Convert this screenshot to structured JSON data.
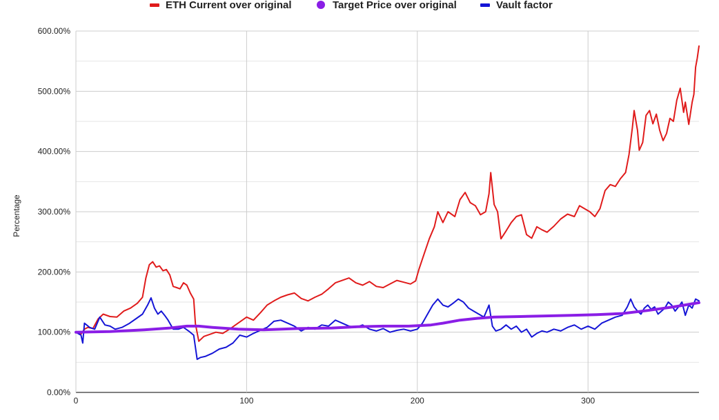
{
  "chart_data": {
    "type": "line",
    "title": "",
    "xlabel": "",
    "ylabel": "Percentage",
    "xlim": [
      0,
      365
    ],
    "ylim": [
      0,
      6
    ],
    "x_ticks": [
      "0",
      "100",
      "200",
      "300"
    ],
    "y_ticks": [
      "0.00%",
      "100.00%",
      "200.00%",
      "300.00%",
      "400.00%",
      "500.00%",
      "600.00%"
    ],
    "grid": true,
    "legend_position": "top",
    "series": [
      {
        "name": "ETH Current over original",
        "color": "#e01b1b",
        "legend_marker": "line",
        "points": [
          [
            0,
            1.0
          ],
          [
            3,
            0.97
          ],
          [
            5,
            1.05
          ],
          [
            7,
            1.08
          ],
          [
            10,
            1.06
          ],
          [
            13,
            1.22
          ],
          [
            16,
            1.3
          ],
          [
            20,
            1.26
          ],
          [
            24,
            1.25
          ],
          [
            28,
            1.35
          ],
          [
            32,
            1.4
          ],
          [
            36,
            1.48
          ],
          [
            39,
            1.58
          ],
          [
            41,
            1.9
          ],
          [
            43,
            2.12
          ],
          [
            45,
            2.17
          ],
          [
            47,
            2.08
          ],
          [
            49,
            2.1
          ],
          [
            51,
            2.02
          ],
          [
            53,
            2.04
          ],
          [
            55,
            1.95
          ],
          [
            57,
            1.76
          ],
          [
            59,
            1.74
          ],
          [
            61,
            1.72
          ],
          [
            63,
            1.82
          ],
          [
            65,
            1.78
          ],
          [
            67,
            1.65
          ],
          [
            69,
            1.55
          ],
          [
            70,
            1.14
          ],
          [
            72,
            0.85
          ],
          [
            75,
            0.93
          ],
          [
            78,
            0.96
          ],
          [
            82,
            1.0
          ],
          [
            86,
            0.98
          ],
          [
            90,
            1.05
          ],
          [
            95,
            1.15
          ],
          [
            100,
            1.25
          ],
          [
            104,
            1.2
          ],
          [
            108,
            1.32
          ],
          [
            112,
            1.45
          ],
          [
            116,
            1.52
          ],
          [
            120,
            1.58
          ],
          [
            124,
            1.62
          ],
          [
            128,
            1.65
          ],
          [
            132,
            1.56
          ],
          [
            136,
            1.52
          ],
          [
            140,
            1.58
          ],
          [
            144,
            1.63
          ],
          [
            148,
            1.72
          ],
          [
            152,
            1.82
          ],
          [
            156,
            1.86
          ],
          [
            160,
            1.9
          ],
          [
            164,
            1.82
          ],
          [
            168,
            1.78
          ],
          [
            172,
            1.84
          ],
          [
            176,
            1.76
          ],
          [
            180,
            1.74
          ],
          [
            184,
            1.8
          ],
          [
            188,
            1.86
          ],
          [
            192,
            1.83
          ],
          [
            196,
            1.8
          ],
          [
            199,
            1.85
          ],
          [
            201,
            2.05
          ],
          [
            204,
            2.3
          ],
          [
            207,
            2.55
          ],
          [
            210,
            2.75
          ],
          [
            212,
            3.0
          ],
          [
            215,
            2.82
          ],
          [
            218,
            3.0
          ],
          [
            222,
            2.92
          ],
          [
            225,
            3.2
          ],
          [
            228,
            3.32
          ],
          [
            231,
            3.15
          ],
          [
            234,
            3.1
          ],
          [
            237,
            2.95
          ],
          [
            240,
            3.0
          ],
          [
            242,
            3.3
          ],
          [
            243,
            3.65
          ],
          [
            245,
            3.12
          ],
          [
            247,
            3.0
          ],
          [
            249,
            2.55
          ],
          [
            252,
            2.68
          ],
          [
            255,
            2.82
          ],
          [
            258,
            2.92
          ],
          [
            261,
            2.95
          ],
          [
            264,
            2.62
          ],
          [
            267,
            2.56
          ],
          [
            270,
            2.75
          ],
          [
            273,
            2.7
          ],
          [
            276,
            2.66
          ],
          [
            280,
            2.76
          ],
          [
            284,
            2.88
          ],
          [
            288,
            2.96
          ],
          [
            292,
            2.92
          ],
          [
            295,
            3.1
          ],
          [
            298,
            3.05
          ],
          [
            301,
            3.0
          ],
          [
            304,
            2.92
          ],
          [
            307,
            3.05
          ],
          [
            310,
            3.35
          ],
          [
            313,
            3.45
          ],
          [
            316,
            3.42
          ],
          [
            319,
            3.55
          ],
          [
            322,
            3.65
          ],
          [
            324,
            3.95
          ],
          [
            326,
            4.4
          ],
          [
            327,
            4.68
          ],
          [
            329,
            4.35
          ],
          [
            330,
            4.02
          ],
          [
            332,
            4.15
          ],
          [
            334,
            4.6
          ],
          [
            336,
            4.68
          ],
          [
            338,
            4.46
          ],
          [
            340,
            4.62
          ],
          [
            342,
            4.35
          ],
          [
            344,
            4.18
          ],
          [
            346,
            4.3
          ],
          [
            348,
            4.55
          ],
          [
            350,
            4.5
          ],
          [
            352,
            4.85
          ],
          [
            354,
            5.05
          ],
          [
            356,
            4.65
          ],
          [
            357,
            4.82
          ],
          [
            359,
            4.45
          ],
          [
            361,
            4.82
          ],
          [
            362,
            4.95
          ],
          [
            363,
            5.4
          ],
          [
            364,
            5.55
          ],
          [
            365,
            5.75
          ]
        ]
      },
      {
        "name": "Target Price over original",
        "color": "#8a1ee6",
        "legend_marker": "dot",
        "points": [
          [
            0,
            1.0
          ],
          [
            20,
            1.01
          ],
          [
            40,
            1.04
          ],
          [
            55,
            1.07
          ],
          [
            65,
            1.1
          ],
          [
            72,
            1.1
          ],
          [
            80,
            1.08
          ],
          [
            95,
            1.05
          ],
          [
            110,
            1.04
          ],
          [
            130,
            1.06
          ],
          [
            150,
            1.07
          ],
          [
            165,
            1.09
          ],
          [
            180,
            1.1
          ],
          [
            195,
            1.1
          ],
          [
            208,
            1.12
          ],
          [
            215,
            1.15
          ],
          [
            225,
            1.2
          ],
          [
            235,
            1.23
          ],
          [
            245,
            1.25
          ],
          [
            260,
            1.26
          ],
          [
            275,
            1.27
          ],
          [
            290,
            1.28
          ],
          [
            305,
            1.29
          ],
          [
            320,
            1.31
          ],
          [
            335,
            1.36
          ],
          [
            350,
            1.42
          ],
          [
            365,
            1.49
          ]
        ]
      },
      {
        "name": "Vault factor",
        "color": "#1515d6",
        "legend_marker": "line",
        "points": [
          [
            0,
            1.0
          ],
          [
            3,
            0.95
          ],
          [
            4,
            0.82
          ],
          [
            5,
            1.15
          ],
          [
            8,
            1.08
          ],
          [
            11,
            1.05
          ],
          [
            14,
            1.25
          ],
          [
            17,
            1.12
          ],
          [
            20,
            1.1
          ],
          [
            23,
            1.05
          ],
          [
            27,
            1.08
          ],
          [
            31,
            1.14
          ],
          [
            35,
            1.22
          ],
          [
            39,
            1.3
          ],
          [
            42,
            1.45
          ],
          [
            44,
            1.57
          ],
          [
            46,
            1.4
          ],
          [
            48,
            1.3
          ],
          [
            50,
            1.35
          ],
          [
            52,
            1.28
          ],
          [
            54,
            1.2
          ],
          [
            57,
            1.05
          ],
          [
            60,
            1.05
          ],
          [
            63,
            1.08
          ],
          [
            66,
            1.02
          ],
          [
            69,
            0.95
          ],
          [
            70,
            0.75
          ],
          [
            71,
            0.55
          ],
          [
            73,
            0.58
          ],
          [
            76,
            0.6
          ],
          [
            80,
            0.65
          ],
          [
            84,
            0.72
          ],
          [
            88,
            0.75
          ],
          [
            92,
            0.82
          ],
          [
            96,
            0.95
          ],
          [
            100,
            0.92
          ],
          [
            104,
            0.98
          ],
          [
            108,
            1.03
          ],
          [
            112,
            1.08
          ],
          [
            116,
            1.18
          ],
          [
            120,
            1.2
          ],
          [
            124,
            1.15
          ],
          [
            128,
            1.1
          ],
          [
            132,
            1.02
          ],
          [
            136,
            1.08
          ],
          [
            140,
            1.05
          ],
          [
            144,
            1.12
          ],
          [
            148,
            1.1
          ],
          [
            152,
            1.2
          ],
          [
            156,
            1.15
          ],
          [
            160,
            1.1
          ],
          [
            164,
            1.08
          ],
          [
            168,
            1.12
          ],
          [
            172,
            1.05
          ],
          [
            176,
            1.02
          ],
          [
            180,
            1.06
          ],
          [
            184,
            1.0
          ],
          [
            188,
            1.03
          ],
          [
            192,
            1.05
          ],
          [
            196,
            1.02
          ],
          [
            200,
            1.05
          ],
          [
            203,
            1.15
          ],
          [
            206,
            1.3
          ],
          [
            209,
            1.45
          ],
          [
            212,
            1.55
          ],
          [
            215,
            1.45
          ],
          [
            218,
            1.42
          ],
          [
            221,
            1.48
          ],
          [
            224,
            1.55
          ],
          [
            227,
            1.5
          ],
          [
            230,
            1.4
          ],
          [
            233,
            1.35
          ],
          [
            236,
            1.3
          ],
          [
            239,
            1.25
          ],
          [
            242,
            1.45
          ],
          [
            244,
            1.1
          ],
          [
            246,
            1.02
          ],
          [
            249,
            1.05
          ],
          [
            252,
            1.12
          ],
          [
            255,
            1.05
          ],
          [
            258,
            1.1
          ],
          [
            261,
            1.0
          ],
          [
            264,
            1.05
          ],
          [
            267,
            0.92
          ],
          [
            270,
            0.98
          ],
          [
            273,
            1.02
          ],
          [
            276,
            1.0
          ],
          [
            280,
            1.05
          ],
          [
            284,
            1.02
          ],
          [
            288,
            1.08
          ],
          [
            292,
            1.12
          ],
          [
            296,
            1.05
          ],
          [
            300,
            1.1
          ],
          [
            304,
            1.05
          ],
          [
            308,
            1.15
          ],
          [
            312,
            1.2
          ],
          [
            316,
            1.25
          ],
          [
            320,
            1.28
          ],
          [
            323,
            1.42
          ],
          [
            325,
            1.55
          ],
          [
            327,
            1.42
          ],
          [
            329,
            1.35
          ],
          [
            331,
            1.3
          ],
          [
            333,
            1.4
          ],
          [
            335,
            1.45
          ],
          [
            337,
            1.38
          ],
          [
            339,
            1.42
          ],
          [
            341,
            1.3
          ],
          [
            343,
            1.35
          ],
          [
            345,
            1.4
          ],
          [
            347,
            1.5
          ],
          [
            349,
            1.45
          ],
          [
            351,
            1.35
          ],
          [
            353,
            1.42
          ],
          [
            355,
            1.5
          ],
          [
            357,
            1.28
          ],
          [
            359,
            1.45
          ],
          [
            361,
            1.4
          ],
          [
            363,
            1.55
          ],
          [
            365,
            1.52
          ]
        ]
      }
    ]
  }
}
